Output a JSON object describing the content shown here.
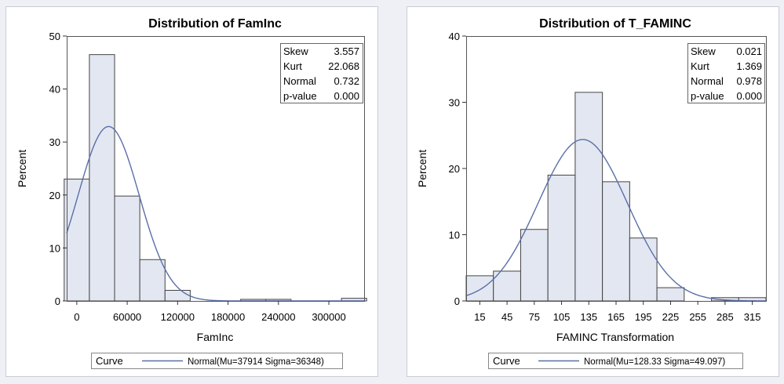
{
  "theme": {
    "page_bg": "#eef0f5",
    "panel_bg": "#ffffff",
    "panel_border": "#c8ccd6",
    "bar_fill": "#e3e7f1",
    "bar_stroke": "#444444",
    "curve_color": "#5a6fa8",
    "text_color": "#000000"
  },
  "panels": [
    {
      "title": "Distribution of FamInc",
      "legend": {
        "label": "Curve",
        "entry": "Normal(Mu=37914 Sigma=36348)"
      },
      "stats": [
        {
          "label": "Skew",
          "value": "3.557"
        },
        {
          "label": "Kurt",
          "value": "22.068"
        },
        {
          "label": "Normal",
          "value": "0.732"
        },
        {
          "label": "p-value",
          "value": "0.000"
        }
      ]
    },
    {
      "title": "Distribution of T_FAMINC",
      "legend": {
        "label": "Curve",
        "entry": "Normal(Mu=128.33 Sigma=49.097)"
      },
      "stats": [
        {
          "label": "Skew",
          "value": "0.021"
        },
        {
          "label": "Kurt",
          "value": "1.369"
        },
        {
          "label": "Normal",
          "value": "0.978"
        },
        {
          "label": "p-value",
          "value": "0.000"
        }
      ]
    }
  ],
  "chart_data": [
    {
      "type": "bar",
      "subtype": "histogram",
      "title": "Distribution of FamInc",
      "xlabel": "FamInc",
      "ylabel": "Percent",
      "bin_width": 30000,
      "bin_midpoints": [
        0,
        30000,
        60000,
        90000,
        120000,
        150000,
        180000,
        210000,
        240000,
        270000,
        300000,
        330000
      ],
      "values": [
        23.0,
        46.5,
        19.8,
        7.8,
        2.0,
        0.0,
        0.0,
        0.3,
        0.3,
        0.0,
        0.0,
        0.5
      ],
      "xlim": [
        -12000,
        342000
      ],
      "ylim": [
        0,
        50
      ],
      "x_ticks": [
        0,
        60000,
        120000,
        180000,
        240000,
        300000
      ],
      "x_tick_labels": [
        "0",
        "60000",
        "120000",
        "180000",
        "240000",
        "300000"
      ],
      "y_ticks": [
        0,
        10,
        20,
        30,
        40,
        50
      ],
      "y_tick_labels": [
        "0",
        "10",
        "20",
        "30",
        "40",
        "50"
      ],
      "curve": {
        "type": "normal",
        "mu": 37914,
        "sigma": 36348
      },
      "legend_position": "bottom",
      "grid": false
    },
    {
      "type": "bar",
      "subtype": "histogram",
      "title": "Distribution of T_FAMINC",
      "xlabel": "FAMINC Transformation",
      "ylabel": "Percent",
      "bin_width": 30,
      "bin_midpoints": [
        15,
        45,
        75,
        105,
        135,
        165,
        195,
        225,
        255,
        285,
        315
      ],
      "values": [
        3.8,
        4.5,
        10.8,
        19.0,
        31.5,
        18.0,
        9.5,
        2.0,
        0.0,
        0.5,
        0.5
      ],
      "xlim": [
        0,
        330
      ],
      "ylim": [
        0,
        40
      ],
      "x_ticks": [
        15,
        45,
        75,
        105,
        135,
        165,
        195,
        225,
        255,
        285,
        315
      ],
      "x_tick_labels": [
        "15",
        "45",
        "75",
        "105",
        "135",
        "165",
        "195",
        "225",
        "255",
        "285",
        "315"
      ],
      "y_ticks": [
        0,
        10,
        20,
        30,
        40
      ],
      "y_tick_labels": [
        "0",
        "10",
        "20",
        "30",
        "40"
      ],
      "curve": {
        "type": "normal",
        "mu": 128.33,
        "sigma": 49.097
      },
      "legend_position": "bottom",
      "grid": false
    }
  ]
}
